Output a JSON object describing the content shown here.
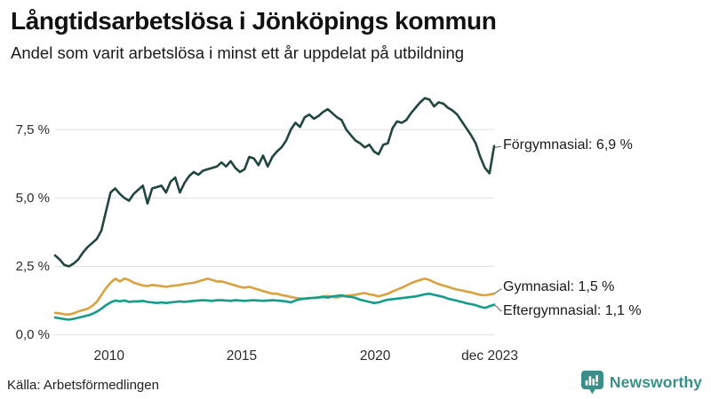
{
  "header": {
    "title": "Långtidsarbetslösa i Jönköpings kommun",
    "subtitle": "Andel som varit arbetslösa i minst ett år uppdelat på utbildning"
  },
  "footer": {
    "source": "Källa: Arbetsförmedlingen",
    "brand": "Newsworthy",
    "brand_color": "#3a9089"
  },
  "chart_data": {
    "type": "line",
    "title": "Långtidsarbetslösa i Jönköpings kommun",
    "subtitle": "Andel som varit arbetslösa i minst ett år uppdelat på utbildning",
    "unit": "%",
    "x_start": "jan 2008",
    "x_end": "dec 2023",
    "points_per_series": 96,
    "interval": "every 2 months",
    "x_tick_labels": [
      "2010",
      "2015",
      "2020",
      "dec 2023"
    ],
    "y_ticks": [
      0,
      2.5,
      5,
      7.5
    ],
    "y_tick_labels": [
      "0,0 %",
      "2,5 %",
      "5,0 %",
      "7,5 %"
    ],
    "ylim": [
      0,
      9
    ],
    "grid": true,
    "grid_color": "#e4e4e4",
    "legend_position": "right-annotations",
    "series": [
      {
        "name": "Förgymnasial",
        "label": "Förgymnasial: 6,9 %",
        "end_value": 6.9,
        "color": "#20463f",
        "values": [
          2.9,
          2.75,
          2.55,
          2.5,
          2.6,
          2.75,
          3.0,
          3.2,
          3.35,
          3.5,
          3.8,
          4.5,
          5.2,
          5.35,
          5.15,
          5.0,
          4.9,
          5.15,
          5.3,
          5.45,
          4.8,
          5.35,
          5.4,
          5.45,
          5.2,
          5.6,
          5.75,
          5.2,
          5.55,
          5.8,
          5.95,
          5.85,
          6.0,
          6.05,
          6.1,
          6.15,
          6.3,
          6.15,
          6.35,
          6.1,
          5.95,
          6.05,
          6.5,
          6.45,
          6.2,
          6.55,
          6.15,
          6.5,
          6.7,
          6.85,
          7.1,
          7.5,
          7.75,
          7.6,
          7.95,
          8.05,
          7.9,
          8.0,
          8.15,
          8.25,
          8.1,
          7.95,
          7.85,
          7.5,
          7.3,
          7.1,
          7.0,
          6.85,
          6.95,
          6.7,
          6.6,
          6.95,
          7.0,
          7.55,
          7.8,
          7.75,
          7.85,
          8.1,
          8.3,
          8.5,
          8.65,
          8.6,
          8.35,
          8.5,
          8.45,
          8.3,
          8.2,
          8.05,
          7.8,
          7.55,
          7.3,
          7.0,
          6.5,
          6.1,
          5.9,
          6.9
        ]
      },
      {
        "name": "Gymnasial",
        "label": "Gymnasial: 1,5 %",
        "end_value": 1.5,
        "color": "#d9a13f",
        "values": [
          0.8,
          0.78,
          0.75,
          0.74,
          0.78,
          0.85,
          0.9,
          0.95,
          1.05,
          1.2,
          1.45,
          1.7,
          1.9,
          2.05,
          1.95,
          2.05,
          2.0,
          1.9,
          1.85,
          1.8,
          1.78,
          1.82,
          1.8,
          1.78,
          1.75,
          1.78,
          1.8,
          1.82,
          1.85,
          1.88,
          1.9,
          1.95,
          2.0,
          2.05,
          2.0,
          1.95,
          1.95,
          1.9,
          1.85,
          1.8,
          1.75,
          1.72,
          1.75,
          1.7,
          1.65,
          1.6,
          1.55,
          1.5,
          1.5,
          1.45,
          1.42,
          1.38,
          1.35,
          1.33,
          1.32,
          1.33,
          1.35,
          1.37,
          1.4,
          1.42,
          1.38,
          1.36,
          1.4,
          1.42,
          1.44,
          1.46,
          1.5,
          1.52,
          1.48,
          1.45,
          1.4,
          1.45,
          1.5,
          1.58,
          1.65,
          1.72,
          1.8,
          1.88,
          1.95,
          2.0,
          2.05,
          2.0,
          1.92,
          1.85,
          1.8,
          1.75,
          1.7,
          1.65,
          1.62,
          1.58,
          1.55,
          1.5,
          1.46,
          1.44,
          1.47,
          1.5
        ]
      },
      {
        "name": "Eftergymnasial",
        "label": "Eftergymnasial: 1,1 %",
        "end_value": 1.1,
        "color": "#149b8a",
        "values": [
          0.63,
          0.6,
          0.57,
          0.55,
          0.58,
          0.62,
          0.66,
          0.7,
          0.76,
          0.84,
          0.95,
          1.08,
          1.18,
          1.25,
          1.22,
          1.25,
          1.2,
          1.22,
          1.22,
          1.24,
          1.2,
          1.18,
          1.16,
          1.18,
          1.16,
          1.18,
          1.2,
          1.22,
          1.2,
          1.22,
          1.24,
          1.25,
          1.26,
          1.25,
          1.24,
          1.26,
          1.26,
          1.25,
          1.24,
          1.26,
          1.25,
          1.24,
          1.25,
          1.26,
          1.25,
          1.24,
          1.25,
          1.26,
          1.25,
          1.24,
          1.22,
          1.18,
          1.25,
          1.3,
          1.32,
          1.34,
          1.35,
          1.36,
          1.38,
          1.36,
          1.4,
          1.42,
          1.44,
          1.4,
          1.38,
          1.35,
          1.28,
          1.24,
          1.2,
          1.16,
          1.18,
          1.24,
          1.28,
          1.3,
          1.32,
          1.34,
          1.36,
          1.38,
          1.4,
          1.44,
          1.48,
          1.5,
          1.46,
          1.42,
          1.38,
          1.32,
          1.28,
          1.24,
          1.2,
          1.15,
          1.12,
          1.08,
          1.02,
          0.98,
          1.04,
          1.1
        ]
      }
    ]
  }
}
